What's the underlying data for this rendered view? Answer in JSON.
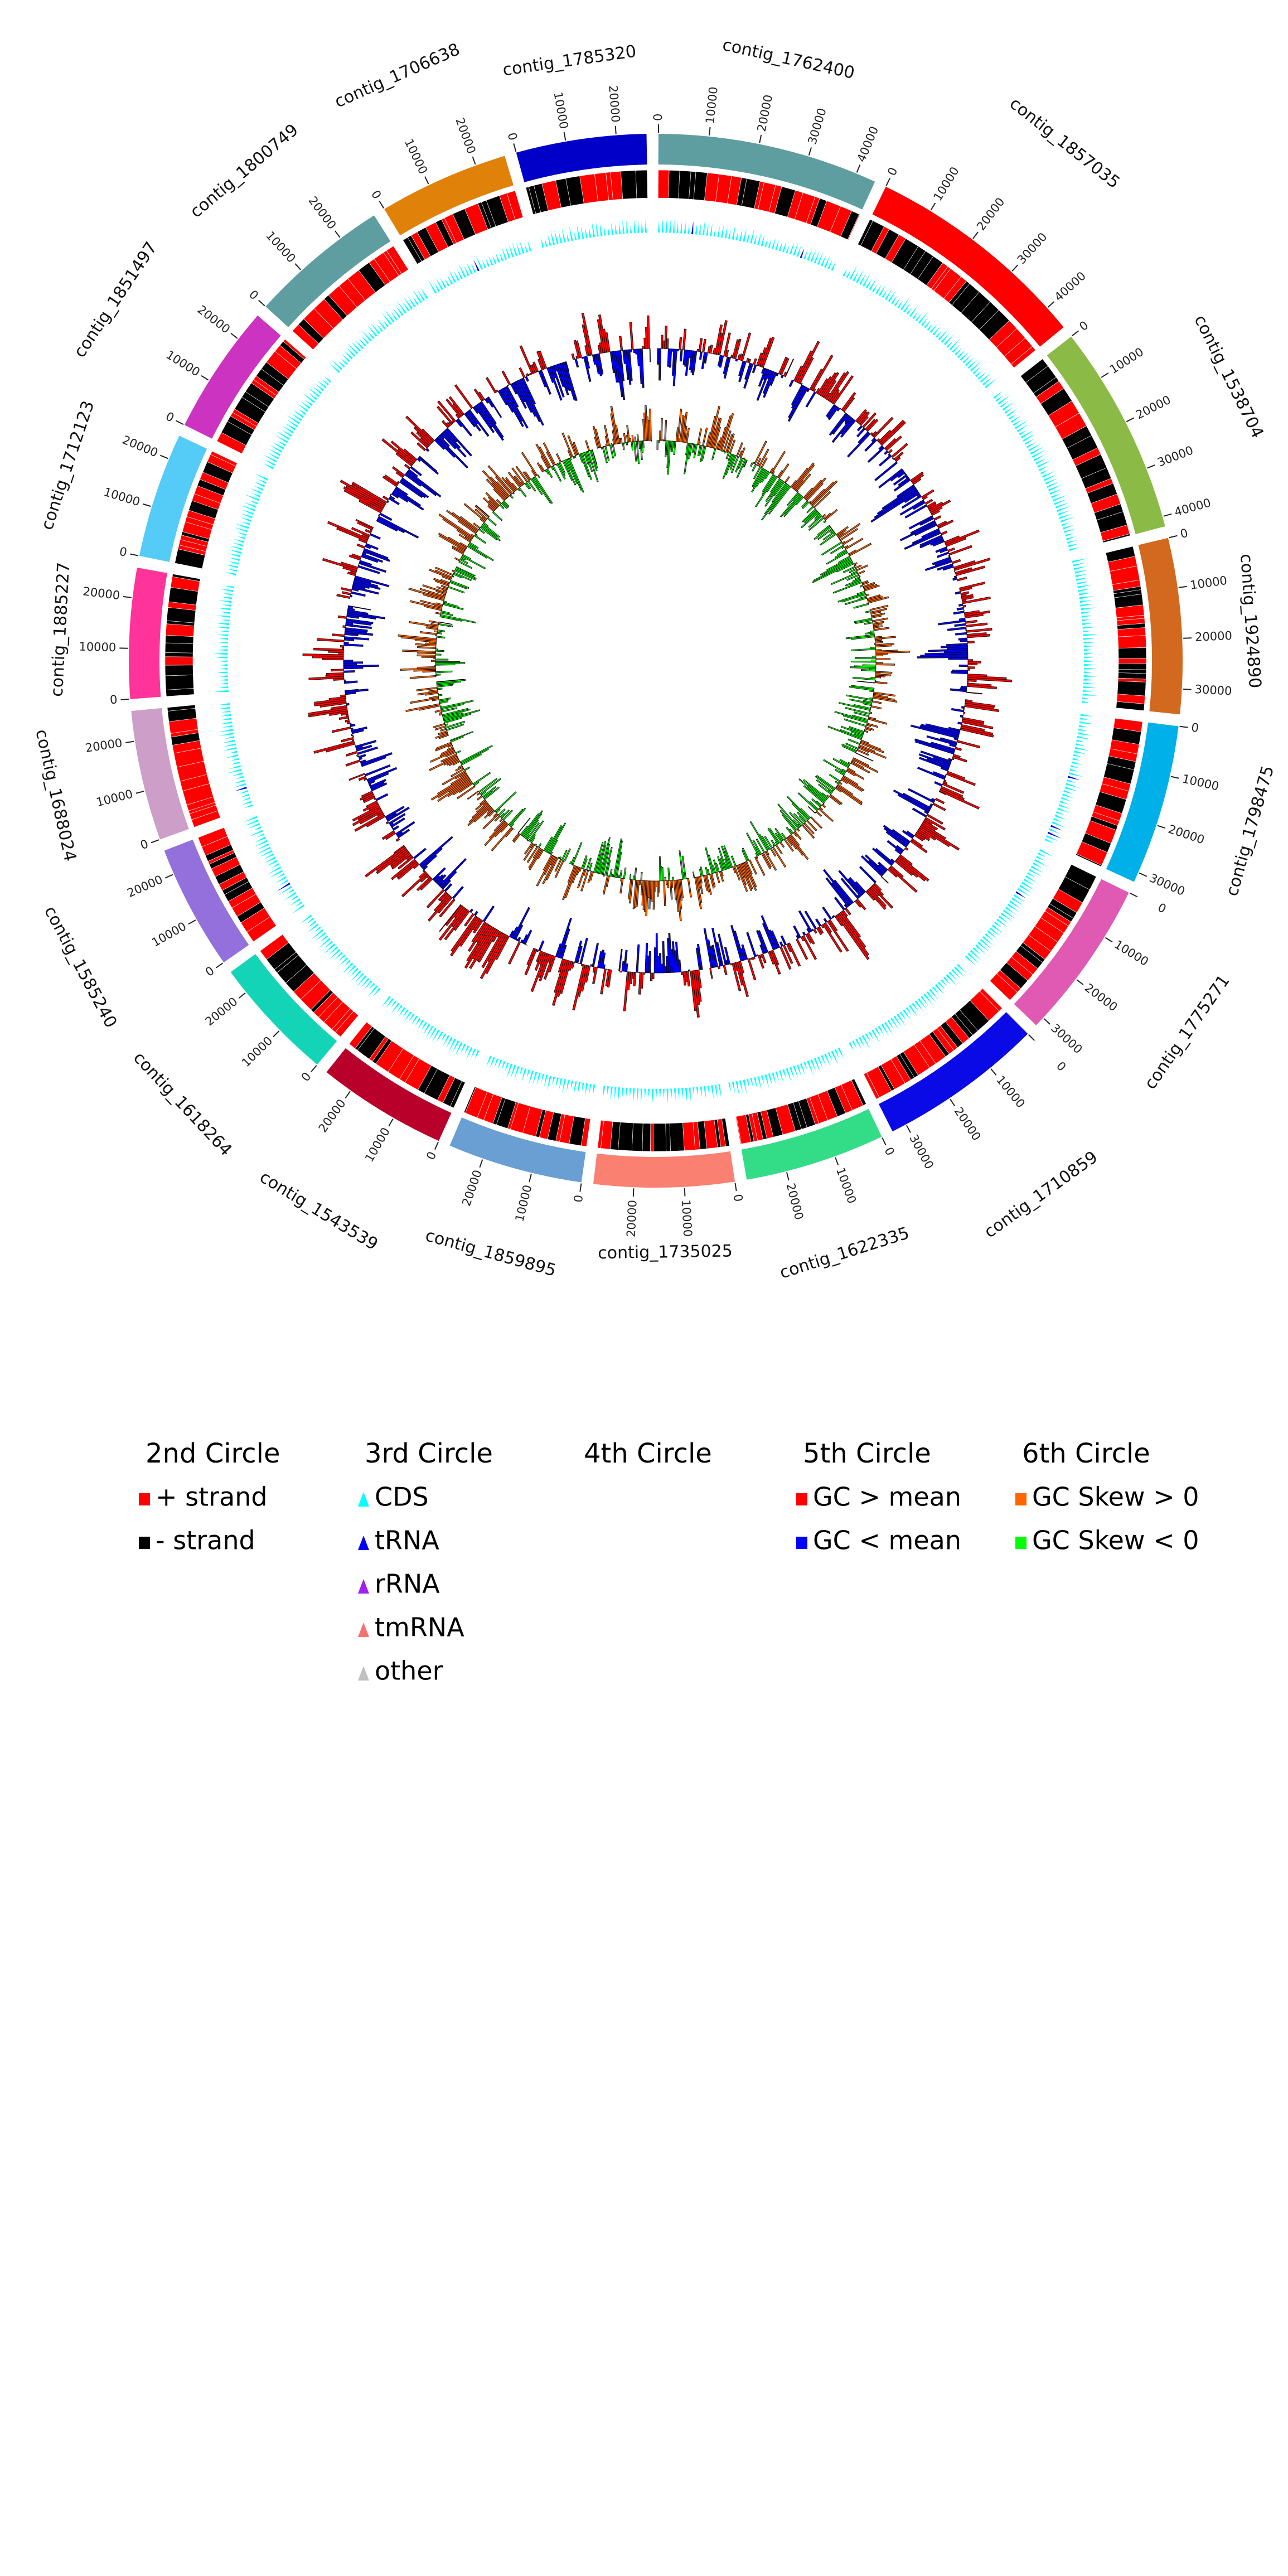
{
  "chart_data": {
    "type": "circular-genome",
    "tick_interval": 10000,
    "contigs": [
      {
        "name": "contig_1762400",
        "length": 44000,
        "color": "#5f9ea0"
      },
      {
        "name": "contig_1857035",
        "length": 45000,
        "color": "#ff0000"
      },
      {
        "name": "contig_1538704",
        "length": 42000,
        "color": "#8bbb46"
      },
      {
        "name": "contig_1924890",
        "length": 35000,
        "color": "#d2691e"
      },
      {
        "name": "contig_1798475",
        "length": 32000,
        "color": "#00b0e8"
      },
      {
        "name": "contig_1775271",
        "length": 32000,
        "color": "#e05ab4"
      },
      {
        "name": "contig_1710859",
        "length": 33000,
        "color": "#0a0ae6"
      },
      {
        "name": "contig_1622335",
        "length": 28000,
        "color": "#33dd88"
      },
      {
        "name": "contig_1735025",
        "length": 28000,
        "color": "#fa8072"
      },
      {
        "name": "contig_1859895",
        "length": 27000,
        "color": "#6a9fd4"
      },
      {
        "name": "contig_1543539",
        "length": 26000,
        "color": "#b8002a"
      },
      {
        "name": "contig_1618264",
        "length": 25000,
        "color": "#14d4b8"
      },
      {
        "name": "contig_1585240",
        "length": 25000,
        "color": "#9370db"
      },
      {
        "name": "contig_1688024",
        "length": 26000,
        "color": "#cc9ec8"
      },
      {
        "name": "contig_1885227",
        "length": 26000,
        "color": "#ff3399"
      },
      {
        "name": "contig_1712123",
        "length": 25000,
        "color": "#55ccf8"
      },
      {
        "name": "contig_1851497",
        "length": 26000,
        "color": "#cc33c0"
      },
      {
        "name": "contig_1800749",
        "length": 28000,
        "color": "#5f9ea0"
      },
      {
        "name": "contig_1706638",
        "length": 26000,
        "color": "#e0820a"
      },
      {
        "name": "contig_1785320",
        "length": 26000,
        "color": "#0000c8"
      }
    ],
    "colors": {
      "plus_strand": "#ff0000",
      "minus_strand": "#000000",
      "CDS": "#00ffff",
      "tRNA": "#0000ff",
      "rRNA": "#a020f0",
      "tmRNA": "#f87070",
      "other": "#c0c0c0",
      "gc_high": "#ff0000",
      "gc_low": "#0000ff",
      "skew_pos": "#ff6600",
      "skew_neg": "#00ff00"
    }
  },
  "legend": {
    "columns": [
      {
        "title": "2nd Circle",
        "items": [
          {
            "label": "+ strand",
            "color": "#ff0000",
            "shape": "rect"
          },
          {
            "label": "- strand",
            "color": "#000000",
            "shape": "rect"
          }
        ]
      },
      {
        "title": "3rd Circle",
        "items": [
          {
            "label": "CDS",
            "color": "#00ffff",
            "shape": "triangle"
          },
          {
            "label": "tRNA",
            "color": "#0000ff",
            "shape": "triangle"
          },
          {
            "label": "rRNA",
            "color": "#a020f0",
            "shape": "triangle"
          },
          {
            "label": "tmRNA",
            "color": "#f87070",
            "shape": "triangle"
          },
          {
            "label": "other",
            "color": "#c0c0c0",
            "shape": "triangle"
          }
        ]
      },
      {
        "title": "4th Circle",
        "items": []
      },
      {
        "title": "5th Circle",
        "items": [
          {
            "label": "GC > mean",
            "color": "#ff0000",
            "shape": "rect"
          },
          {
            "label": "GC < mean",
            "color": "#0000ff",
            "shape": "rect"
          }
        ]
      },
      {
        "title": "6th Circle",
        "items": [
          {
            "label": "GC Skew > 0",
            "color": "#ff6600",
            "shape": "rect"
          },
          {
            "label": "GC Skew < 0",
            "color": "#00ff00",
            "shape": "rect"
          }
        ]
      }
    ]
  }
}
